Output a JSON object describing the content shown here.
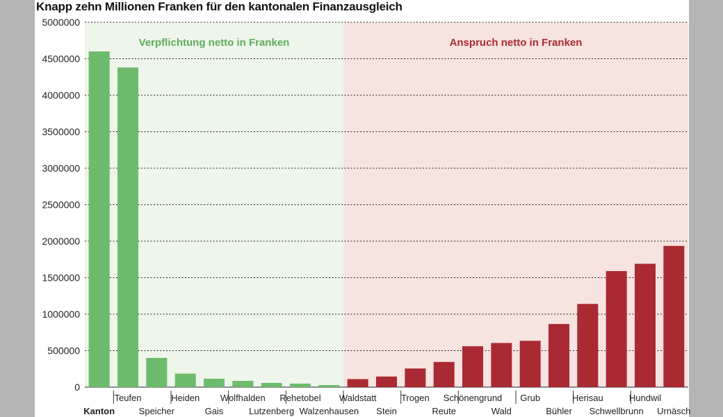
{
  "chart_data": {
    "type": "bar",
    "title": "Knapp zehn Millionen Franken für den kantonalen Finanzausgleich",
    "xlabel": "",
    "ylabel": "",
    "ylim": [
      0,
      5000000
    ],
    "yticks": [
      0,
      500000,
      1000000,
      1500000,
      2000000,
      2500000,
      3000000,
      3500000,
      4000000,
      4500000,
      5000000
    ],
    "ytick_labels": [
      "0",
      "500000",
      "1000000",
      "1500000",
      "2000000",
      "2500000",
      "3000000",
      "3500000",
      "4000000",
      "4500000",
      "5000000"
    ],
    "grid": true,
    "categories": [
      "Kanton",
      "Teufen",
      "Speicher",
      "Heiden",
      "Gais",
      "Wolfhalden",
      "Lutzenberg",
      "Rehetobel",
      "Walzenhausen",
      "Waldstatt",
      "Stein",
      "Trogen",
      "Reute",
      "Schönengrund",
      "Wald",
      "Grub",
      "Bühler",
      "Herisau",
      "Schwellbrunn",
      "Hundwil",
      "Urnäsch"
    ],
    "values": [
      4600000,
      4380000,
      400000,
      185000,
      115000,
      85000,
      58000,
      48000,
      28000,
      110000,
      145000,
      255000,
      345000,
      560000,
      605000,
      635000,
      865000,
      1140000,
      1590000,
      1690000,
      1935000
    ],
    "groups": [
      {
        "label": "Verpflichtung netto in Franken",
        "count": 9,
        "bar_color": "#6dbb6d",
        "background": "#eef5ea",
        "label_color": "#5cae5c"
      },
      {
        "label": "Anspruch netto in Franken",
        "count": 12,
        "bar_color": "#a92a33",
        "background": "#f7e3df",
        "label_color": "#a92a33"
      }
    ]
  }
}
